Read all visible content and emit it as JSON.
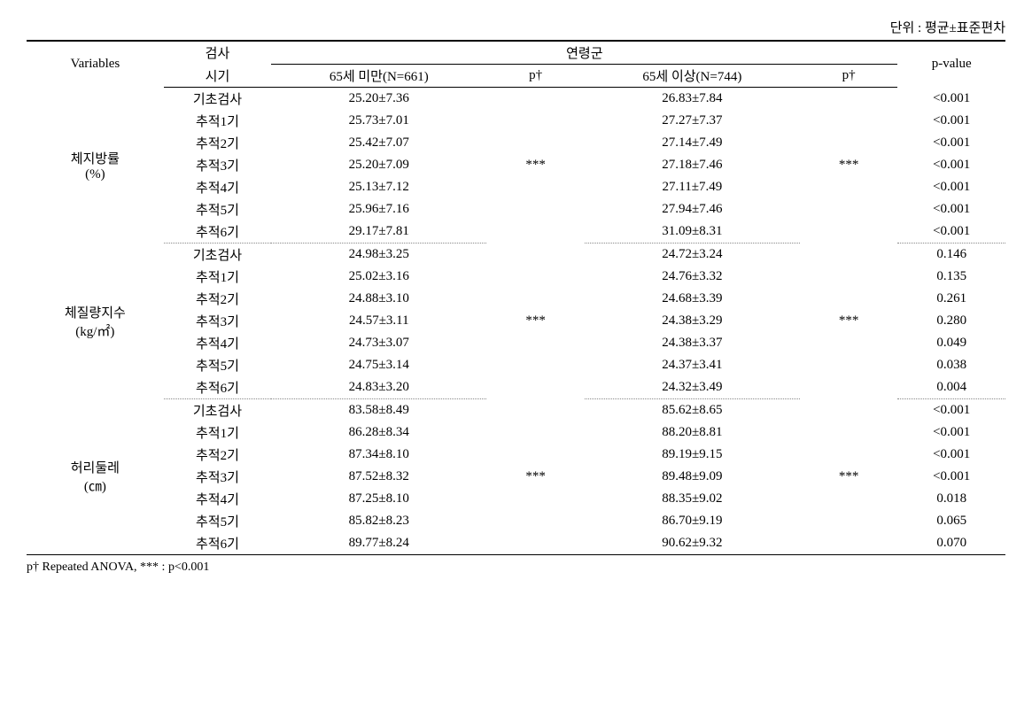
{
  "unit_label": "단위 : 평균±표준편차",
  "header": {
    "variables": "Variables",
    "exam_time_line1": "검사",
    "exam_time_line2": "시기",
    "age_group": "연령군",
    "under65": "65세 미만(N=661)",
    "over65": "65세 이상(N=744)",
    "p_dagger": "p†",
    "pvalue": "p-value"
  },
  "sections": [
    {
      "varname": "체지방률",
      "varunit": "(%)",
      "sig_under": "***",
      "sig_over": "***",
      "rows": [
        {
          "time": "기초검사",
          "under": "25.20±7.36",
          "over": "26.83±7.84",
          "pval": "<0.001"
        },
        {
          "time": "추적1기",
          "under": "25.73±7.01",
          "over": "27.27±7.37",
          "pval": "<0.001"
        },
        {
          "time": "추적2기",
          "under": "25.42±7.07",
          "over": "27.14±7.49",
          "pval": "<0.001"
        },
        {
          "time": "추적3기",
          "under": "25.20±7.09",
          "over": "27.18±7.46",
          "pval": "<0.001"
        },
        {
          "time": "추적4기",
          "under": "25.13±7.12",
          "over": "27.11±7.49",
          "pval": "<0.001"
        },
        {
          "time": "추적5기",
          "under": "25.96±7.16",
          "over": "27.94±7.46",
          "pval": "<0.001"
        },
        {
          "time": "추적6기",
          "under": "29.17±7.81",
          "over": "31.09±8.31",
          "pval": "<0.001"
        }
      ]
    },
    {
      "varname": "체질량지수",
      "varunit": "(kg/㎡)",
      "sig_under": "***",
      "sig_over": "***",
      "rows": [
        {
          "time": "기초검사",
          "under": "24.98±3.25",
          "over": "24.72±3.24",
          "pval": "0.146"
        },
        {
          "time": "추적1기",
          "under": "25.02±3.16",
          "over": "24.76±3.32",
          "pval": "0.135"
        },
        {
          "time": "추적2기",
          "under": "24.88±3.10",
          "over": "24.68±3.39",
          "pval": "0.261"
        },
        {
          "time": "추적3기",
          "under": "24.57±3.11",
          "over": "24.38±3.29",
          "pval": "0.280"
        },
        {
          "time": "추적4기",
          "under": "24.73±3.07",
          "over": "24.38±3.37",
          "pval": "0.049"
        },
        {
          "time": "추적5기",
          "under": "24.75±3.14",
          "over": "24.37±3.41",
          "pval": "0.038"
        },
        {
          "time": "추적6기",
          "under": "24.83±3.20",
          "over": "24.32±3.49",
          "pval": "0.004"
        }
      ]
    },
    {
      "varname": "허리둘레",
      "varunit": "(㎝)",
      "sig_under": "***",
      "sig_over": "***",
      "rows": [
        {
          "time": "기초검사",
          "under": "83.58±8.49",
          "over": "85.62±8.65",
          "pval": "<0.001"
        },
        {
          "time": "추적1기",
          "under": "86.28±8.34",
          "over": "88.20±8.81",
          "pval": "<0.001"
        },
        {
          "time": "추적2기",
          "under": "87.34±8.10",
          "over": "89.19±9.15",
          "pval": "<0.001"
        },
        {
          "time": "추적3기",
          "under": "87.52±8.32",
          "over": "89.48±9.09",
          "pval": "<0.001"
        },
        {
          "time": "추적4기",
          "under": "87.25±8.10",
          "over": "88.35±9.02",
          "pval": "0.018"
        },
        {
          "time": "추적5기",
          "under": "85.82±8.23",
          "over": "86.70±9.19",
          "pval": "0.065"
        },
        {
          "time": "추적6기",
          "under": "89.77±8.24",
          "over": "90.62±9.32",
          "pval": "0.070"
        }
      ]
    }
  ],
  "footnote": "p† Repeated ANOVA, *** : p<0.001"
}
